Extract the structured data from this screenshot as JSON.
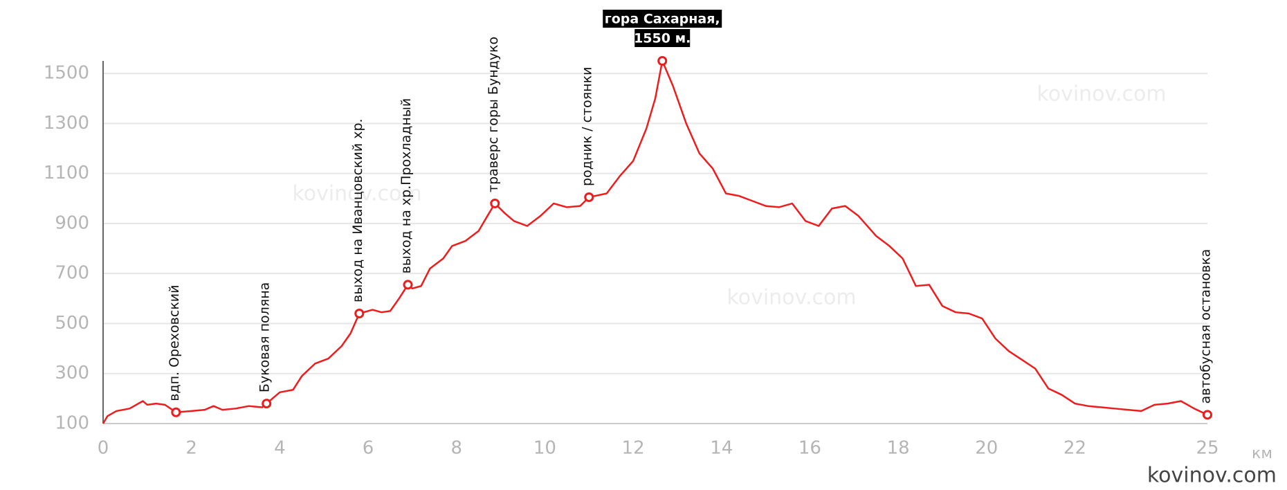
{
  "chart_data": {
    "type": "line",
    "x_unit": "км",
    "xlim": [
      0,
      25
    ],
    "xticks": [
      0,
      2,
      4,
      6,
      8,
      10,
      12,
      14,
      16,
      18,
      20,
      22,
      25
    ],
    "ylim": [
      100,
      1550
    ],
    "yticks": [
      100,
      300,
      500,
      700,
      900,
      1100,
      1300,
      1500
    ],
    "grid": true,
    "series": [
      {
        "color": "#ee1c1c",
        "x": [
          0,
          0.1,
          0.3,
          0.6,
          0.9,
          1.0,
          1.2,
          1.4,
          1.65,
          2.0,
          2.3,
          2.5,
          2.7,
          3.0,
          3.3,
          3.6,
          3.7,
          4.0,
          4.3,
          4.5,
          4.8,
          5.1,
          5.4,
          5.6,
          5.8,
          6.1,
          6.3,
          6.5,
          6.7,
          6.9,
          7.0,
          7.2,
          7.4,
          7.7,
          7.9,
          8.2,
          8.5,
          8.7,
          8.87,
          9.1,
          9.3,
          9.6,
          9.9,
          10.2,
          10.5,
          10.8,
          11.0,
          11.4,
          11.7,
          12.0,
          12.3,
          12.5,
          12.66,
          12.9,
          13.2,
          13.5,
          13.8,
          14.1,
          14.4,
          14.7,
          15.0,
          15.3,
          15.6,
          15.9,
          16.2,
          16.5,
          16.8,
          17.1,
          17.5,
          17.8,
          18.1,
          18.4,
          18.7,
          19.0,
          19.3,
          19.6,
          19.9,
          20.2,
          20.5,
          20.8,
          21.1,
          21.4,
          21.7,
          22.0,
          22.3,
          22.6,
          22.9,
          23.2,
          23.5,
          23.8,
          24.1,
          24.4,
          24.7,
          25.0
        ],
        "values": [
          100,
          130,
          150,
          160,
          190,
          175,
          180,
          175,
          145,
          150,
          155,
          170,
          155,
          160,
          170,
          165,
          180,
          225,
          235,
          290,
          340,
          360,
          410,
          460,
          540,
          555,
          545,
          550,
          600,
          655,
          640,
          650,
          720,
          760,
          810,
          830,
          870,
          930,
          980,
          940,
          910,
          890,
          930,
          980,
          965,
          970,
          1005,
          1020,
          1090,
          1150,
          1280,
          1400,
          1550,
          1450,
          1300,
          1180,
          1120,
          1020,
          1010,
          990,
          970,
          965,
          980,
          910,
          890,
          960,
          970,
          930,
          850,
          810,
          760,
          650,
          655,
          570,
          545,
          540,
          520,
          440,
          390,
          355,
          320,
          240,
          215,
          180,
          170,
          165,
          160,
          155,
          150,
          175,
          180,
          190,
          160,
          135
        ]
      }
    ],
    "waypoints": [
      {
        "label": "вдп. Ореховский",
        "x": 1.65,
        "y": 145
      },
      {
        "label": "Буковая поляна",
        "x": 3.7,
        "y": 180
      },
      {
        "label": "выход на Иванцовский хр.",
        "x": 5.8,
        "y": 540
      },
      {
        "label": "выход на хр.Прохладный",
        "x": 6.9,
        "y": 655
      },
      {
        "label": "траверс горы Бундуко",
        "x": 8.87,
        "y": 980
      },
      {
        "label": "родник / стоянки",
        "x": 11.0,
        "y": 1005
      },
      {
        "label": "автобусная остановка",
        "x": 25.0,
        "y": 135
      }
    ],
    "peak": {
      "label_lines": [
        "гора Сахарная,",
        "1550 м."
      ],
      "x": 12.66,
      "y": 1550
    },
    "watermarks": [
      "kovinov.com",
      "kovinov.com",
      "kovinov.com"
    ],
    "credit": "kovinov.com"
  }
}
